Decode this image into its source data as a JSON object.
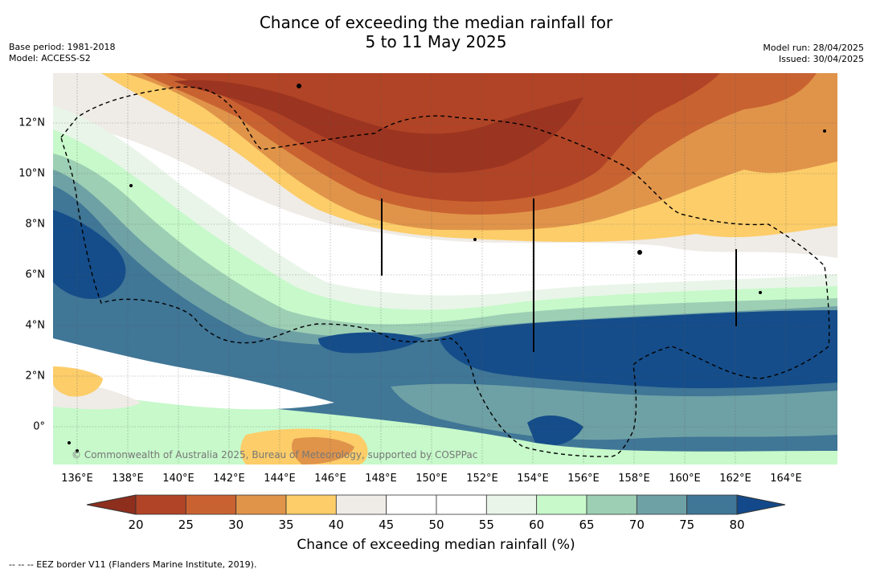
{
  "title": {
    "line1": "Chance of exceeding the median rainfall for",
    "line2": "5 to 11 May 2025"
  },
  "meta": {
    "base_period": "Base period: 1981-2018",
    "model": "Model: ACCESS-S2",
    "model_run": "Model run: 28/04/2025",
    "issued": "Issued: 30/04/2025"
  },
  "map": {
    "lon_ticks": [
      "136°E",
      "138°E",
      "140°E",
      "142°E",
      "144°E",
      "146°E",
      "148°E",
      "150°E",
      "152°E",
      "154°E",
      "156°E",
      "158°E",
      "160°E",
      "162°E",
      "164°E"
    ],
    "lat_ticks": [
      "12°N",
      "10°N",
      "8°N",
      "6°N",
      "4°N",
      "2°N",
      "0°"
    ],
    "copyright": "© Commonwealth of Australia 2025, Bureau of Meteorology, supported by COSPPac"
  },
  "colorbar": {
    "title": "Chance of exceeding median rainfall (%)",
    "labels": [
      "20",
      "25",
      "30",
      "35",
      "40",
      "45",
      "50",
      "55",
      "60",
      "65",
      "70",
      "75",
      "80"
    ],
    "colors": [
      "#9b3420",
      "#b14426",
      "#c96231",
      "#e0944a",
      "#fccd69",
      "#efebe6",
      "#ffffff",
      "#ffffff",
      "#e9f5e9",
      "#c7f9ca",
      "#9dcfb4",
      "#6ea1a5",
      "#407696",
      "#154d8a"
    ],
    "under_color": "#8e2e1d",
    "over_color": "#13498a"
  },
  "legend": {
    "eez_text": "--  --  -- EEZ border V11 (Flanders Marine Institute, 2019)."
  }
}
